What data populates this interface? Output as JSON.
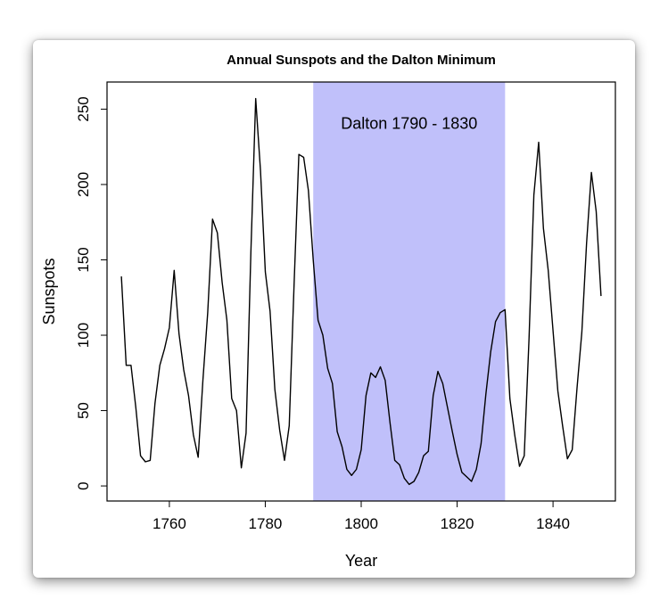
{
  "chart_data": {
    "type": "line",
    "title": "Annual Sunspots and the Dalton Minimum",
    "xlabel": "Year",
    "ylabel": "Sunspots",
    "xlim": [
      1747,
      1853
    ],
    "ylim": [
      -10,
      268
    ],
    "xticks": [
      1760,
      1780,
      1800,
      1820,
      1840
    ],
    "yticks": [
      0,
      50,
      100,
      150,
      200,
      250
    ],
    "grid": false,
    "shaded_region": {
      "x_start": 1790,
      "x_end": 1830,
      "color": "#c0c0fa"
    },
    "annotation": {
      "text": "Dalton 1790 - 1830",
      "x": 1810,
      "y": 237
    },
    "series": [
      {
        "name": "Sunspots",
        "color": "#000000",
        "x": [
          1750,
          1751,
          1752,
          1753,
          1754,
          1755,
          1756,
          1757,
          1758,
          1759,
          1760,
          1761,
          1762,
          1763,
          1764,
          1765,
          1766,
          1767,
          1768,
          1769,
          1770,
          1771,
          1772,
          1773,
          1774,
          1775,
          1776,
          1777,
          1778,
          1779,
          1780,
          1781,
          1782,
          1783,
          1784,
          1785,
          1786,
          1787,
          1788,
          1789,
          1790,
          1791,
          1792,
          1793,
          1794,
          1795,
          1796,
          1797,
          1798,
          1799,
          1800,
          1801,
          1802,
          1803,
          1804,
          1805,
          1806,
          1807,
          1808,
          1809,
          1810,
          1811,
          1812,
          1813,
          1814,
          1815,
          1816,
          1817,
          1818,
          1819,
          1820,
          1821,
          1822,
          1823,
          1824,
          1825,
          1826,
          1827,
          1828,
          1829,
          1830,
          1831,
          1832,
          1833,
          1834,
          1835,
          1836,
          1837,
          1838,
          1839,
          1840,
          1841,
          1842,
          1843,
          1844,
          1845,
          1846,
          1847,
          1848,
          1849,
          1850
        ],
        "values": [
          139,
          80,
          80,
          52,
          20,
          16,
          17,
          55,
          80,
          91,
          105,
          143,
          101,
          77,
          60,
          34,
          19,
          70,
          115,
          177,
          168,
          135,
          110,
          58,
          50,
          12,
          35,
          155,
          257,
          209,
          142,
          116,
          64,
          37,
          17,
          40,
          133,
          220,
          218,
          196,
          150,
          110,
          100,
          78,
          68,
          36,
          26,
          11,
          7,
          11,
          24,
          60,
          75,
          72,
          79,
          70,
          42,
          17,
          14,
          5,
          1,
          3,
          9,
          20,
          23,
          60,
          76,
          68,
          52,
          36,
          21,
          9,
          6,
          3,
          11,
          28,
          61,
          89,
          109,
          115,
          117,
          58,
          34,
          13,
          20,
          98,
          193,
          228,
          171,
          143,
          103,
          63,
          40,
          18,
          24,
          65,
          102,
          161,
          208,
          182,
          126
        ]
      }
    ]
  }
}
